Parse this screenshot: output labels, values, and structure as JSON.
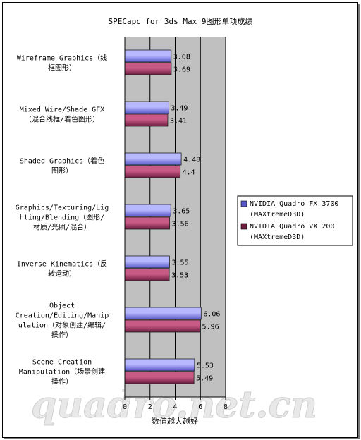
{
  "chart_data": {
    "type": "bar",
    "orientation": "horizontal",
    "title": "SPECapc for 3ds Max 9图形单项成绩",
    "xlabel": "数值越大越好",
    "xlim": [
      0,
      8
    ],
    "xticks": [
      "0",
      "2",
      "4",
      "6",
      "8"
    ],
    "categories": [
      [
        "Wireframe Graphics（线",
        "框图形）"
      ],
      [
        "Mixed Wire/Shade GFX",
        "（混合线框/着色图形）"
      ],
      [
        "Shaded Graphics（着色",
        "图形）"
      ],
      [
        "Graphics/Texturing/Lig",
        "hting/Blending（图形/",
        "材质/光照/混合）"
      ],
      [
        "Inverse Kinematics（反",
        "转运动）"
      ],
      [
        "Object",
        "Creation/Editing/Manip",
        "ulation（对象创建/编辑/",
        "操作）"
      ],
      [
        "Scene Creation",
        "Manipulation（场景创建",
        "操作）"
      ]
    ],
    "series": [
      {
        "name": "NVIDIA Quadro FX 3700 (MAXtremeD3D)",
        "name_lines": [
          "NVIDIA Quadro FX 3700",
          "(MAXtremeD3D)"
        ],
        "values": [
          3.68,
          3.49,
          4.48,
          3.65,
          3.55,
          6.06,
          5.53
        ],
        "labels": [
          "3.68",
          "3.49",
          "4.48",
          "3.65",
          "3.55",
          "6.06",
          "5.53"
        ]
      },
      {
        "name": "NVIDIA Quadro VX 200 (MAXtremeD3D)",
        "name_lines": [
          "NVIDIA Quadro VX 200",
          "(MAXtremeD3D)"
        ],
        "values": [
          3.69,
          3.41,
          4.4,
          3.56,
          3.53,
          5.96,
          5.49
        ],
        "labels": [
          "3.69",
          "3.41",
          "4.4",
          "3.56",
          "3.53",
          "5.96",
          "5.49"
        ]
      }
    ],
    "grid": true,
    "legend_position": "right",
    "watermark": "quadro.net.cn",
    "colors": {
      "plot_bg": "#c0c0c0",
      "series1_light": "#b8b8ff",
      "series1_dark": "#5858c8",
      "series2_light": "#c85a86",
      "series2_dark": "#6e1c40"
    }
  }
}
